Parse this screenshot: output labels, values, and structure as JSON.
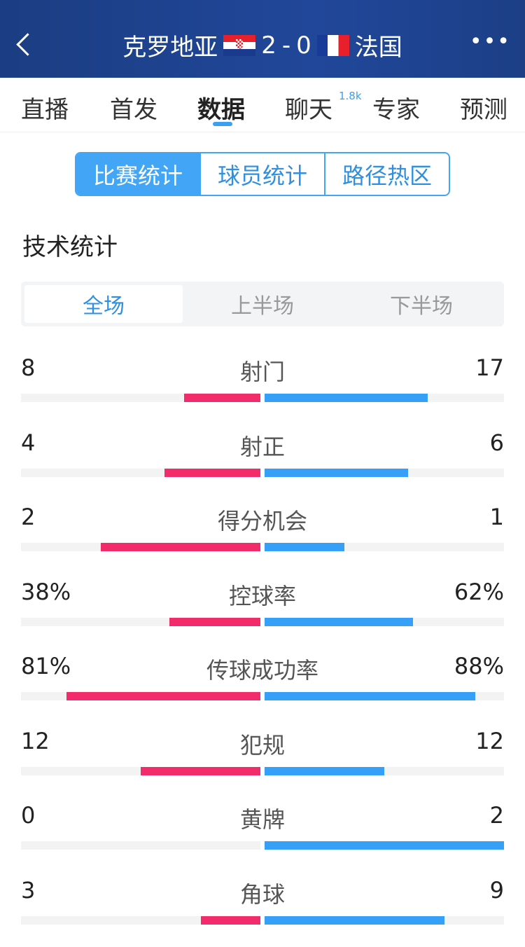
{
  "header": {
    "home": "克罗地亚",
    "score_home": "2",
    "sep": "-",
    "score_away": "0",
    "away": "法国",
    "more": "•••"
  },
  "tabs": [
    {
      "label": "直播"
    },
    {
      "label": "首发"
    },
    {
      "label": "数据",
      "active": true
    },
    {
      "label": "聊天",
      "badge": "1.8k"
    },
    {
      "label": "专家"
    },
    {
      "label": "预测"
    }
  ],
  "segments": [
    "比赛统计",
    "球员统计",
    "路径热区"
  ],
  "section_title": "技术统计",
  "periods": [
    "全场",
    "上半场",
    "下半场"
  ],
  "colors": {
    "home": "#f22b6b",
    "away": "#36a0f8",
    "header": "#1e4190"
  },
  "stats": [
    {
      "label": "射门",
      "home": "8",
      "away": "17",
      "home_frac": 0.32,
      "away_frac": 0.68
    },
    {
      "label": "射正",
      "home": "4",
      "away": "6",
      "home_frac": 0.4,
      "away_frac": 0.6
    },
    {
      "label": "得分机会",
      "home": "2",
      "away": "1",
      "home_frac": 0.667,
      "away_frac": 0.333
    },
    {
      "label": "控球率",
      "home": "38%",
      "away": "62%",
      "home_frac": 0.38,
      "away_frac": 0.62
    },
    {
      "label": "传球成功率",
      "home": "81%",
      "away": "88%",
      "home_frac": 0.81,
      "away_frac": 0.88
    },
    {
      "label": "犯规",
      "home": "12",
      "away": "12",
      "home_frac": 0.5,
      "away_frac": 0.5
    },
    {
      "label": "黄牌",
      "home": "0",
      "away": "2",
      "home_frac": 0,
      "away_frac": 1
    },
    {
      "label": "角球",
      "home": "3",
      "away": "9",
      "home_frac": 0.25,
      "away_frac": 0.75
    }
  ]
}
